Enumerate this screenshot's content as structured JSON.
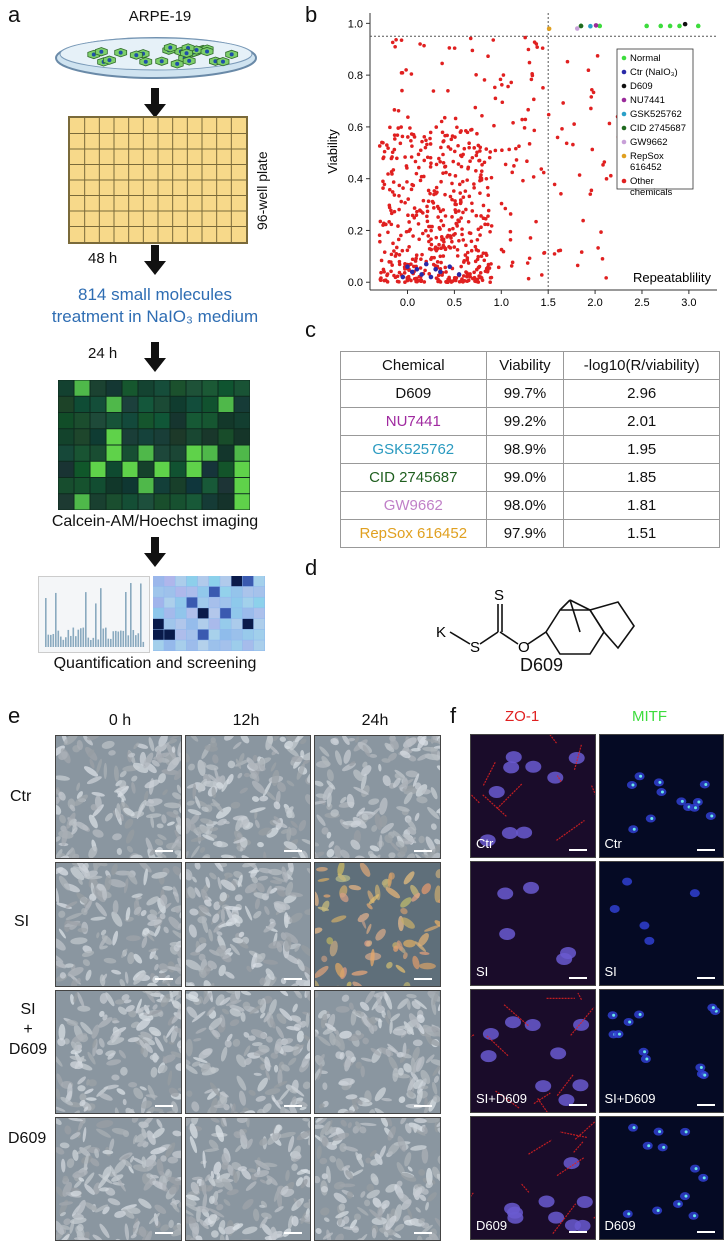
{
  "panels": {
    "a": "a",
    "b": "b",
    "c": "c",
    "d": "d",
    "e": "e",
    "f": "f"
  },
  "panel_a": {
    "cell_line": "ARPE-19",
    "plate_label": "96-well plate",
    "time1": "48 h",
    "treatment_line1": "814 small molecules",
    "treatment_line2": "treatment in NaIO₃ medium",
    "time2": "24 h",
    "imaging": "Calcein-AM/Hoechst imaging",
    "quant": "Quantification and screening",
    "colors": {
      "treatment_text": "#2e6db3",
      "plate_fill": "#f7d98a",
      "plate_line": "#7a6a3a"
    }
  },
  "chart_data": {
    "type": "scatter",
    "title": "",
    "xlabel": "Repeatablility",
    "ylabel": "Viability",
    "xlim": [
      -0.4,
      3.3
    ],
    "ylim": [
      -0.03,
      1.04
    ],
    "xticks": [
      "0.0",
      "0.5",
      "1.0",
      "1.5",
      "2.0",
      "2.5",
      "3.0"
    ],
    "yticks": [
      "0.0",
      "0.2",
      "0.4",
      "0.6",
      "0.8",
      "1.0"
    ],
    "threshold_x": 1.5,
    "threshold_y": 0.95,
    "legend_position": "top-right",
    "series": [
      {
        "name": "Normal",
        "color": "#3ddc3d",
        "points": [
          [
            1.85,
            0.99
          ],
          [
            2.05,
            0.99
          ],
          [
            2.55,
            0.99
          ],
          [
            2.7,
            0.99
          ],
          [
            2.8,
            0.99
          ],
          [
            2.9,
            0.99
          ],
          [
            3.1,
            0.99
          ]
        ]
      },
      {
        "name": "Ctr (NaIO₃)",
        "color": "#2a2aa8",
        "points": [
          [
            0.0,
            0.06
          ],
          [
            0.05,
            0.04
          ],
          [
            0.1,
            0.05
          ],
          [
            0.15,
            0.03
          ],
          [
            0.2,
            0.07
          ],
          [
            0.3,
            0.05
          ],
          [
            0.35,
            0.04
          ],
          [
            0.45,
            0.06
          ],
          [
            0.55,
            0.03
          ],
          [
            -0.05,
            0.02
          ],
          [
            0.25,
            0.02
          ]
        ]
      },
      {
        "name": "D609",
        "color": "#111111",
        "points": [
          [
            2.96,
            0.997
          ]
        ]
      },
      {
        "name": "NU7441",
        "color": "#9a2a9a",
        "points": [
          [
            2.01,
            0.992
          ]
        ]
      },
      {
        "name": "GSK525762",
        "color": "#2aa0c8",
        "points": [
          [
            1.95,
            0.989
          ]
        ]
      },
      {
        "name": "CID 2745687",
        "color": "#1f6a1f",
        "points": [
          [
            1.85,
            0.99
          ]
        ]
      },
      {
        "name": "GW9662",
        "color": "#c8a0d8",
        "points": [
          [
            1.81,
            0.98
          ]
        ]
      },
      {
        "name": "RepSox 616452",
        "color": "#e0a020",
        "points": [
          [
            1.51,
            0.979
          ]
        ]
      },
      {
        "name": "Other chemicals",
        "color": "#e02020",
        "points": "generated"
      }
    ]
  },
  "panel_c": {
    "headers": [
      "Chemical",
      "Viability",
      "-log10(R/viability)"
    ],
    "rows": [
      {
        "chemical": "D609",
        "viability": "99.7%",
        "score": "2.96",
        "color": "#111111"
      },
      {
        "chemical": "NU7441",
        "viability": "99.2%",
        "score": "2.01",
        "color": "#a02aa0"
      },
      {
        "chemical": "GSK525762",
        "viability": "98.9%",
        "score": "1.95",
        "color": "#2a9ac0"
      },
      {
        "chemical": "CID 2745687",
        "viability": "99.0%",
        "score": "1.85",
        "color": "#1f5f1f"
      },
      {
        "chemical": "GW9662",
        "viability": "98.0%",
        "score": "1.81",
        "color": "#c080c8"
      },
      {
        "chemical": "RepSox 616452",
        "viability": "97.9%",
        "score": "1.51",
        "color": "#e0a020"
      }
    ]
  },
  "panel_d": {
    "atom_k": "K",
    "atom_s1": "S",
    "atom_s2": "S",
    "atom_o": "O",
    "name": "D609"
  },
  "panel_e": {
    "columns": [
      "0 h",
      "12h",
      "24h"
    ],
    "rows": [
      "Ctr",
      "SI",
      "SI",
      "+",
      "D609",
      "D609"
    ]
  },
  "panel_f": {
    "columns": [
      "ZO-1",
      "MITF"
    ],
    "row_labels": [
      "Ctr",
      "SI",
      "SI+D609",
      "D609"
    ],
    "colors": {
      "zo1": "#e02020",
      "mitf": "#3ddc3d"
    }
  }
}
